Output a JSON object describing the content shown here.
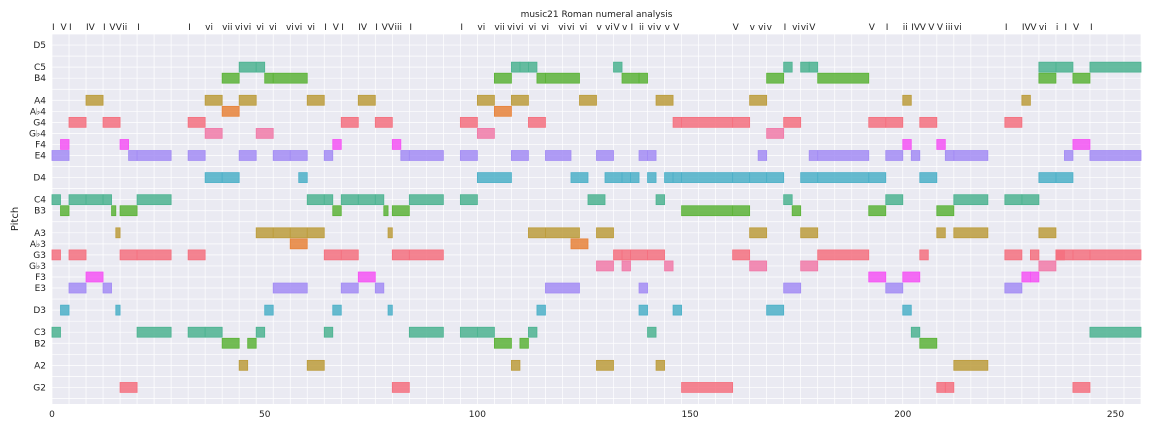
{
  "chart_data": {
    "type": "piano-roll",
    "title": "music21 Roman numeral analysis",
    "xlabel": "",
    "ylabel": "Pitch",
    "xlim": [
      0,
      256
    ],
    "xticks": [
      0,
      50,
      100,
      150,
      200,
      250
    ],
    "ylim": [
      41.5,
      75
    ],
    "grid": true,
    "background": "#EAEAF2",
    "grid_color": "#FFFFFF",
    "pitch_ticks": [
      {
        "midi": 43,
        "label": "G2"
      },
      {
        "midi": 45,
        "label": "A2"
      },
      {
        "midi": 47,
        "label": "B2"
      },
      {
        "midi": 48,
        "label": "C3"
      },
      {
        "midi": 50,
        "label": "D3"
      },
      {
        "midi": 52,
        "label": "E3"
      },
      {
        "midi": 53,
        "label": "F3"
      },
      {
        "midi": 54,
        "label": "G♭3"
      },
      {
        "midi": 55,
        "label": "G3"
      },
      {
        "midi": 56,
        "label": "A♭3"
      },
      {
        "midi": 57,
        "label": "A3"
      },
      {
        "midi": 59,
        "label": "B3"
      },
      {
        "midi": 60,
        "label": "C4"
      },
      {
        "midi": 62,
        "label": "D4"
      },
      {
        "midi": 64,
        "label": "E4"
      },
      {
        "midi": 65,
        "label": "F4"
      },
      {
        "midi": 66,
        "label": "G♭4"
      },
      {
        "midi": 67,
        "label": "G4"
      },
      {
        "midi": 68,
        "label": "A♭4"
      },
      {
        "midi": 69,
        "label": "A4"
      },
      {
        "midi": 71,
        "label": "B4"
      },
      {
        "midi": 72,
        "label": "C5"
      },
      {
        "midi": 74,
        "label": "D5"
      }
    ],
    "pitch_colors": {
      "C": "#4CB391",
      "D": "#4CB0C8",
      "E": "#A38CF4",
      "F": "#F553F5",
      "G": "#F5707F",
      "A": "#BC9C3C",
      "B": "#5CB338",
      "Ab": "#E8833A",
      "Gb": "#F17AA8"
    },
    "roman_numerals": [
      {
        "x": 0,
        "label": "I"
      },
      {
        "x": 2,
        "label": "V"
      },
      {
        "x": 4,
        "label": "I"
      },
      {
        "x": 8,
        "label": "IV"
      },
      {
        "x": 12,
        "label": "I"
      },
      {
        "x": 13.5,
        "label": "V"
      },
      {
        "x": 15,
        "label": "V"
      },
      {
        "x": 16.5,
        "label": "ii"
      },
      {
        "x": 20,
        "label": "I"
      },
      {
        "x": 32,
        "label": "I"
      },
      {
        "x": 36,
        "label": "vi"
      },
      {
        "x": 40,
        "label": "vii"
      },
      {
        "x": 43,
        "label": "vi"
      },
      {
        "x": 45,
        "label": "vi"
      },
      {
        "x": 48,
        "label": "vi"
      },
      {
        "x": 51,
        "label": "vi"
      },
      {
        "x": 55,
        "label": "vi"
      },
      {
        "x": 57,
        "label": "vi"
      },
      {
        "x": 60,
        "label": "vi"
      },
      {
        "x": 64,
        "label": "I"
      },
      {
        "x": 66,
        "label": "V"
      },
      {
        "x": 68,
        "label": "I"
      },
      {
        "x": 72,
        "label": "IV"
      },
      {
        "x": 76,
        "label": "I"
      },
      {
        "x": 77.5,
        "label": "V"
      },
      {
        "x": 79,
        "label": "V"
      },
      {
        "x": 80.5,
        "label": "iii"
      },
      {
        "x": 84,
        "label": "I"
      },
      {
        "x": 96,
        "label": "I"
      },
      {
        "x": 100,
        "label": "vi"
      },
      {
        "x": 104,
        "label": "vii"
      },
      {
        "x": 107,
        "label": "vi"
      },
      {
        "x": 109,
        "label": "vi"
      },
      {
        "x": 112,
        "label": "vi"
      },
      {
        "x": 115,
        "label": "vi"
      },
      {
        "x": 119,
        "label": "vi"
      },
      {
        "x": 121,
        "label": "vi"
      },
      {
        "x": 124,
        "label": "vi"
      },
      {
        "x": 128,
        "label": "v"
      },
      {
        "x": 130,
        "label": "vi"
      },
      {
        "x": 132,
        "label": "V"
      },
      {
        "x": 134,
        "label": "v"
      },
      {
        "x": 136,
        "label": "I"
      },
      {
        "x": 138,
        "label": "ii"
      },
      {
        "x": 140,
        "label": "vi"
      },
      {
        "x": 142,
        "label": "v"
      },
      {
        "x": 144,
        "label": "v"
      },
      {
        "x": 146,
        "label": "V"
      },
      {
        "x": 160,
        "label": "V"
      },
      {
        "x": 164,
        "label": "v"
      },
      {
        "x": 166,
        "label": "vi"
      },
      {
        "x": 168,
        "label": "v"
      },
      {
        "x": 172,
        "label": "I"
      },
      {
        "x": 174,
        "label": "vi"
      },
      {
        "x": 176,
        "label": "vi"
      },
      {
        "x": 178,
        "label": "V"
      },
      {
        "x": 192,
        "label": "V"
      },
      {
        "x": 196,
        "label": "I"
      },
      {
        "x": 200,
        "label": "ii"
      },
      {
        "x": 202,
        "label": "IV"
      },
      {
        "x": 204,
        "label": "V"
      },
      {
        "x": 206,
        "label": "V"
      },
      {
        "x": 208,
        "label": "V"
      },
      {
        "x": 210,
        "label": "iii"
      },
      {
        "x": 212,
        "label": "vi"
      },
      {
        "x": 224,
        "label": "I"
      },
      {
        "x": 228,
        "label": "IV"
      },
      {
        "x": 230,
        "label": "V"
      },
      {
        "x": 232,
        "label": "vi"
      },
      {
        "x": 236,
        "label": "i"
      },
      {
        "x": 238,
        "label": "I"
      },
      {
        "x": 240,
        "label": "V"
      },
      {
        "x": 244,
        "label": "I"
      }
    ],
    "notes": [
      [
        0,
        4,
        64
      ],
      [
        0,
        2,
        60
      ],
      [
        0,
        2,
        55
      ],
      [
        0,
        2,
        48
      ],
      [
        2,
        4,
        65
      ],
      [
        2,
        4,
        59
      ],
      [
        2,
        4,
        50
      ],
      [
        4,
        8,
        67
      ],
      [
        4,
        8,
        60
      ],
      [
        4,
        8,
        55
      ],
      [
        4,
        8,
        52
      ],
      [
        8,
        12,
        69
      ],
      [
        8,
        12,
        60
      ],
      [
        8,
        12,
        53
      ],
      [
        12,
        16,
        67
      ],
      [
        12,
        14,
        60
      ],
      [
        12,
        14,
        52
      ],
      [
        14,
        15,
        59
      ],
      [
        15,
        16,
        57
      ],
      [
        15,
        16,
        50
      ],
      [
        16,
        18,
        65
      ],
      [
        16,
        20,
        59
      ],
      [
        16,
        20,
        55
      ],
      [
        16,
        20,
        43
      ],
      [
        18,
        20,
        64
      ],
      [
        20,
        28,
        64
      ],
      [
        20,
        28,
        60
      ],
      [
        20,
        28,
        55
      ],
      [
        20,
        28,
        48
      ],
      [
        32,
        36,
        67
      ],
      [
        32,
        36,
        64
      ],
      [
        32,
        36,
        55
      ],
      [
        32,
        36,
        48
      ],
      [
        36,
        40,
        69
      ],
      [
        36,
        40,
        66
      ],
      [
        36,
        40,
        62
      ],
      [
        36,
        40,
        48
      ],
      [
        40,
        44,
        71
      ],
      [
        40,
        44,
        68
      ],
      [
        40,
        44,
        62
      ],
      [
        40,
        44,
        47
      ],
      [
        44,
        48,
        72
      ],
      [
        44,
        48,
        69
      ],
      [
        44,
        48,
        64
      ],
      [
        44,
        46,
        45
      ],
      [
        46,
        48,
        47
      ],
      [
        48,
        50,
        72
      ],
      [
        48,
        52,
        66
      ],
      [
        48,
        52,
        57
      ],
      [
        48,
        50,
        48
      ],
      [
        50,
        52,
        71
      ],
      [
        50,
        52,
        50
      ],
      [
        52,
        60,
        71
      ],
      [
        52,
        56,
        64
      ],
      [
        52,
        56,
        57
      ],
      [
        52,
        60,
        52
      ],
      [
        56,
        60,
        64
      ],
      [
        56,
        60,
        57
      ],
      [
        56,
        60,
        56
      ],
      [
        58,
        60,
        62
      ],
      [
        60,
        64,
        69
      ],
      [
        60,
        64,
        60
      ],
      [
        60,
        64,
        57
      ],
      [
        60,
        64,
        45
      ],
      [
        64,
        66,
        64
      ],
      [
        64,
        66,
        60
      ],
      [
        64,
        68,
        55
      ],
      [
        64,
        66,
        48
      ],
      [
        66,
        68,
        65
      ],
      [
        66,
        68,
        59
      ],
      [
        66,
        68,
        50
      ],
      [
        68,
        72,
        67
      ],
      [
        68,
        72,
        60
      ],
      [
        68,
        72,
        55
      ],
      [
        68,
        72,
        52
      ],
      [
        72,
        76,
        69
      ],
      [
        72,
        76,
        60
      ],
      [
        72,
        76,
        53
      ],
      [
        76,
        80,
        67
      ],
      [
        76,
        78,
        60
      ],
      [
        76,
        78,
        52
      ],
      [
        78,
        79,
        59
      ],
      [
        79,
        80,
        57
      ],
      [
        79,
        80,
        50
      ],
      [
        80,
        82,
        65
      ],
      [
        80,
        84,
        59
      ],
      [
        80,
        84,
        55
      ],
      [
        80,
        84,
        43
      ],
      [
        82,
        84,
        64
      ],
      [
        84,
        92,
        64
      ],
      [
        84,
        92,
        60
      ],
      [
        84,
        92,
        55
      ],
      [
        84,
        92,
        48
      ],
      [
        96,
        100,
        67
      ],
      [
        96,
        100,
        64
      ],
      [
        96,
        100,
        60
      ],
      [
        96,
        100,
        48
      ],
      [
        100,
        104,
        69
      ],
      [
        100,
        104,
        66
      ],
      [
        100,
        108,
        62
      ],
      [
        100,
        104,
        48
      ],
      [
        104,
        108,
        71
      ],
      [
        104,
        108,
        68
      ],
      [
        104,
        108,
        47
      ],
      [
        108,
        110,
        72
      ],
      [
        108,
        112,
        69
      ],
      [
        108,
        112,
        64
      ],
      [
        108,
        110,
        45
      ],
      [
        110,
        112,
        72
      ],
      [
        110,
        112,
        47
      ],
      [
        112,
        114,
        72
      ],
      [
        112,
        116,
        67
      ],
      [
        112,
        116,
        57
      ],
      [
        112,
        114,
        48
      ],
      [
        114,
        116,
        71
      ],
      [
        114,
        116,
        50
      ],
      [
        116,
        124,
        71
      ],
      [
        116,
        122,
        64
      ],
      [
        116,
        124,
        57
      ],
      [
        116,
        124,
        52
      ],
      [
        122,
        126,
        62
      ],
      [
        122,
        126,
        56
      ],
      [
        124,
        128,
        69
      ],
      [
        126,
        130,
        60
      ],
      [
        128,
        132,
        64
      ],
      [
        128,
        132,
        57
      ],
      [
        128,
        132,
        54
      ],
      [
        128,
        132,
        45
      ],
      [
        130,
        134,
        62
      ],
      [
        132,
        134,
        72
      ],
      [
        132,
        134,
        55
      ],
      [
        134,
        138,
        71
      ],
      [
        134,
        136,
        62
      ],
      [
        134,
        136,
        55
      ],
      [
        134,
        136,
        54
      ],
      [
        136,
        138,
        62
      ],
      [
        136,
        140,
        55
      ],
      [
        138,
        140,
        71
      ],
      [
        138,
        140,
        64
      ],
      [
        138,
        140,
        52
      ],
      [
        138,
        140,
        50
      ],
      [
        140,
        142,
        64
      ],
      [
        140,
        142,
        48
      ],
      [
        140,
        142,
        62
      ],
      [
        140,
        144,
        55
      ],
      [
        142,
        146,
        69
      ],
      [
        142,
        144,
        60
      ],
      [
        144,
        146,
        62
      ],
      [
        144,
        146,
        54
      ],
      [
        142,
        144,
        45
      ],
      [
        146,
        148,
        67
      ],
      [
        146,
        148,
        62
      ],
      [
        146,
        148,
        50
      ],
      [
        148,
        160,
        67
      ],
      [
        148,
        160,
        62
      ],
      [
        148,
        160,
        59
      ],
      [
        148,
        160,
        43
      ],
      [
        160,
        164,
        67
      ],
      [
        160,
        164,
        62
      ],
      [
        160,
        164,
        59
      ],
      [
        160,
        164,
        55
      ],
      [
        164,
        168,
        69
      ],
      [
        164,
        168,
        62
      ],
      [
        164,
        168,
        57
      ],
      [
        164,
        168,
        54
      ],
      [
        166,
        168,
        64
      ],
      [
        168,
        172,
        71
      ],
      [
        168,
        172,
        66
      ],
      [
        168,
        172,
        62
      ],
      [
        168,
        172,
        50
      ],
      [
        172,
        174,
        72
      ],
      [
        172,
        176,
        67
      ],
      [
        172,
        174,
        60
      ],
      [
        172,
        176,
        52
      ],
      [
        174,
        176,
        59
      ],
      [
        176,
        178,
        72
      ],
      [
        176,
        180,
        62
      ],
      [
        176,
        180,
        57
      ],
      [
        176,
        180,
        54
      ],
      [
        178,
        180,
        72
      ],
      [
        178,
        180,
        64
      ],
      [
        180,
        192,
        71
      ],
      [
        180,
        192,
        62
      ],
      [
        180,
        192,
        55
      ],
      [
        180,
        192,
        64
      ],
      [
        192,
        196,
        67
      ],
      [
        192,
        196,
        62
      ],
      [
        192,
        196,
        59
      ],
      [
        192,
        196,
        53
      ],
      [
        196,
        200,
        67
      ],
      [
        196,
        200,
        64
      ],
      [
        196,
        200,
        60
      ],
      [
        196,
        200,
        52
      ],
      [
        200,
        202,
        69
      ],
      [
        200,
        202,
        65
      ],
      [
        200,
        204,
        53
      ],
      [
        200,
        202,
        50
      ],
      [
        202,
        204,
        64
      ],
      [
        202,
        204,
        48
      ],
      [
        204,
        208,
        67
      ],
      [
        204,
        208,
        62
      ],
      [
        204,
        206,
        55
      ],
      [
        204,
        208,
        47
      ],
      [
        208,
        210,
        65
      ],
      [
        208,
        212,
        59
      ],
      [
        208,
        210,
        43
      ],
      [
        210,
        212,
        64
      ],
      [
        208,
        210,
        57
      ],
      [
        210,
        212,
        43
      ],
      [
        212,
        220,
        64
      ],
      [
        212,
        220,
        60
      ],
      [
        212,
        220,
        57
      ],
      [
        212,
        220,
        45
      ],
      [
        224,
        228,
        67
      ],
      [
        224,
        228,
        60
      ],
      [
        224,
        228,
        55
      ],
      [
        224,
        228,
        52
      ],
      [
        228,
        230,
        69
      ],
      [
        228,
        232,
        60
      ],
      [
        228,
        230,
        53
      ],
      [
        230,
        232,
        55
      ],
      [
        230,
        232,
        53
      ],
      [
        232,
        236,
        72
      ],
      [
        232,
        236,
        71
      ],
      [
        232,
        236,
        62
      ],
      [
        232,
        236,
        57
      ],
      [
        232,
        236,
        54
      ],
      [
        236,
        240,
        72
      ],
      [
        236,
        240,
        62
      ],
      [
        236,
        240,
        55
      ],
      [
        236,
        238,
        55
      ],
      [
        238,
        240,
        64
      ],
      [
        240,
        244,
        71
      ],
      [
        240,
        244,
        65
      ],
      [
        240,
        244,
        55
      ],
      [
        240,
        244,
        43
      ],
      [
        244,
        256,
        72
      ],
      [
        244,
        256,
        64
      ],
      [
        244,
        256,
        55
      ],
      [
        244,
        256,
        48
      ]
    ]
  }
}
